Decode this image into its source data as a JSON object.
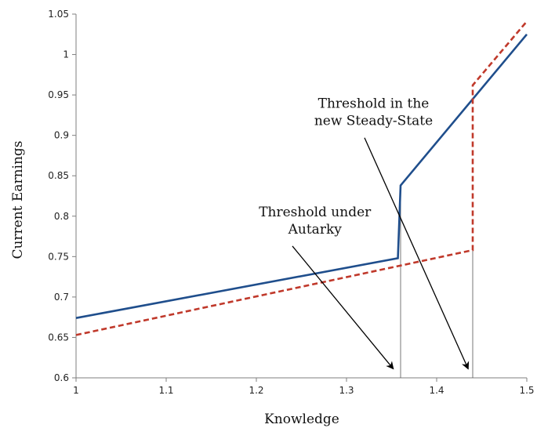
{
  "chart_data": {
    "type": "line",
    "xlabel": "Knowledge",
    "ylabel": "Current Earnings",
    "xlim": [
      1,
      1.5
    ],
    "ylim": [
      0.6,
      1.05
    ],
    "x_ticks": [
      1,
      1.1,
      1.2,
      1.3,
      1.4,
      1.5
    ],
    "x_tick_labels": [
      "1",
      "1.1",
      "1.2",
      "1.3",
      "1.4",
      "1.5"
    ],
    "y_ticks": [
      0.6,
      0.65,
      0.7,
      0.75,
      0.8,
      0.85,
      0.9,
      0.95,
      1,
      1.05
    ],
    "y_tick_labels": [
      "0.6",
      "0.65",
      "0.7",
      "0.75",
      "0.8",
      "0.85",
      "0.9",
      "0.95",
      "1",
      "1.05"
    ],
    "grid": false,
    "series": [
      {
        "color": "#1f4e8c",
        "dash": "solid",
        "points": [
          [
            1,
            0.674
          ],
          [
            1.357,
            0.748
          ],
          [
            1.36,
            0.838
          ],
          [
            1.5,
            1.025
          ]
        ]
      },
      {
        "color": "#c0392b",
        "dash": "dashed",
        "points": [
          [
            1,
            0.653
          ],
          [
            1.44,
            0.758
          ],
          [
            1.44,
            0.962
          ],
          [
            1.5,
            1.041
          ]
        ]
      }
    ],
    "vlines": [
      1.36,
      1.44
    ],
    "annotations": [
      {
        "lines": [
          "Threshold under",
          "Autarky"
        ],
        "text_at": [
          1.265,
          0.8
        ],
        "line_from": [
          1.24,
          0.763
        ],
        "arrow_to": [
          1.352,
          0.611
        ]
      },
      {
        "lines": [
          "Threshold in the",
          "new Steady-State"
        ],
        "text_at": [
          1.33,
          0.934
        ],
        "line_from": [
          1.32,
          0.897
        ],
        "arrow_to": [
          1.435,
          0.611
        ]
      }
    ]
  }
}
